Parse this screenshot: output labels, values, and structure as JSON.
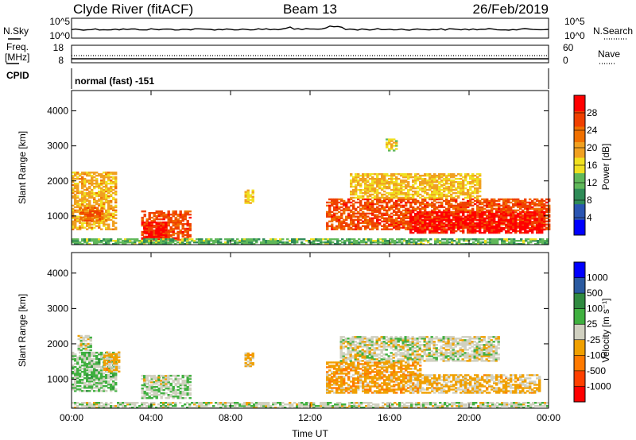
{
  "header": {
    "station": "Clyde River (fitACF)",
    "beam": "Beam 13",
    "date": "26/Feb/2019"
  },
  "strip_labels": {
    "nsky": "N.Sky",
    "nsearch": "N.Search",
    "freq_line1": "Freq.",
    "freq_line2": "[MHz]",
    "nave": "Nave",
    "cpid": "CPID",
    "cpid_value": "normal (fast) -151",
    "noise_top": "10^5",
    "noise_bottom": "10^0",
    "freq_top": "18",
    "freq_bottom": "8",
    "nave_top": "60",
    "nave_bottom": "0"
  },
  "colors": {
    "power": [
      "#0000ff",
      "#2a55b2",
      "#2e8b57",
      "#60b85a",
      "#f0e020",
      "#f0a020",
      "#f07000",
      "#f04000",
      "#ff0000"
    ],
    "velocity": [
      "#ff0000",
      "#ff4000",
      "#ff7a00",
      "#f0a000",
      "#d0d0c0",
      "#40b040",
      "#308a40",
      "#2a5aa0",
      "#0000ff"
    ],
    "ground_scatter": "#a0a0a0"
  },
  "chart_data": [
    {
      "type": "heatmap",
      "name": "power-panel",
      "ylabel": "Slant Range [km]",
      "xlabel": "",
      "x_ticks": [
        "00:00",
        "04:00",
        "08:00",
        "12:00",
        "16:00",
        "20:00",
        "00:00"
      ],
      "y_ticks": [
        1000,
        2000,
        3000,
        4000
      ],
      "ylim": [
        180,
        4580
      ],
      "colorbar": {
        "label": "Power [dB]",
        "ticks": [
          "4",
          "8",
          "12",
          "16",
          "20",
          "24",
          "28"
        ],
        "range": [
          0,
          32
        ]
      },
      "regions": [
        {
          "t": [
            0.0,
            2.2
          ],
          "r": [
            600,
            2250
          ],
          "level": 19
        },
        {
          "t": [
            0.4,
            1.6
          ],
          "r": [
            850,
            1250
          ],
          "level": 24
        },
        {
          "t": [
            3.5,
            6.0
          ],
          "r": [
            300,
            1150
          ],
          "level": 26
        },
        {
          "t": [
            3.6,
            4.8
          ],
          "r": [
            300,
            800
          ],
          "level": 30
        },
        {
          "t": [
            0.0,
            24.0
          ],
          "r": [
            180,
            320
          ],
          "level": 12
        },
        {
          "t": [
            8.7,
            9.1
          ],
          "r": [
            1350,
            1750
          ],
          "level": 18
        },
        {
          "t": [
            12.8,
            24.0
          ],
          "r": [
            600,
            1500
          ],
          "level": 26
        },
        {
          "t": [
            14.0,
            20.5
          ],
          "r": [
            1500,
            2200
          ],
          "level": 18
        },
        {
          "t": [
            15.8,
            16.3
          ],
          "r": [
            2850,
            3200
          ],
          "level": 16
        },
        {
          "t": [
            17.0,
            23.8
          ],
          "r": [
            500,
            1100
          ],
          "level": 30
        }
      ]
    },
    {
      "type": "heatmap",
      "name": "velocity-panel",
      "ylabel": "Slant Range [km]",
      "xlabel": "Time UT",
      "x_ticks": [
        "00:00",
        "04:00",
        "08:00",
        "12:00",
        "16:00",
        "20:00",
        "00:00"
      ],
      "y_ticks": [
        1000,
        2000,
        3000,
        4000
      ],
      "ylim": [
        180,
        4580
      ],
      "colorbar": {
        "label": "Velocity [m s⁻¹]",
        "ticks": [
          "-1000",
          "-500",
          "-100",
          "-25",
          "25",
          "100",
          "500",
          "1000"
        ],
        "range": [
          -1200,
          1200
        ]
      },
      "regions": [
        {
          "t": [
            0.0,
            2.2
          ],
          "r": [
            650,
            1750
          ],
          "level": 200
        },
        {
          "t": [
            0.3,
            1.0
          ],
          "r": [
            1800,
            2250
          ],
          "level": 0
        },
        {
          "t": [
            1.6,
            2.4
          ],
          "r": [
            1200,
            1750
          ],
          "level": -200
        },
        {
          "t": [
            3.5,
            6.0
          ],
          "r": [
            450,
            1100
          ],
          "level": 80
        },
        {
          "t": [
            3.6,
            4.9
          ],
          "r": [
            850,
            1100
          ],
          "level": 0
        },
        {
          "t": [
            8.7,
            9.1
          ],
          "r": [
            1350,
            1750
          ],
          "level": -200
        },
        {
          "t": [
            12.8,
            17.5
          ],
          "r": [
            600,
            1500
          ],
          "level": -300
        },
        {
          "t": [
            13.5,
            21.5
          ],
          "r": [
            1500,
            2200
          ],
          "level": 0
        },
        {
          "t": [
            17.0,
            23.5
          ],
          "r": [
            600,
            1100
          ],
          "level": -200
        },
        {
          "t": [
            0.0,
            24.0
          ],
          "r": [
            180,
            320
          ],
          "level": 40
        }
      ]
    }
  ]
}
